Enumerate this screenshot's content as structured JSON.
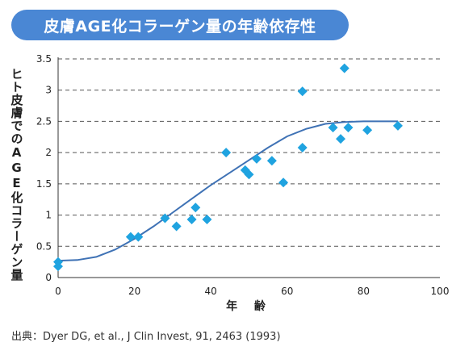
{
  "title": "皮膚AGE化コラーゲン量の年齢依存性",
  "source": "出典：Dyer DG, et al., J Clin Invest, 91, 2463 (1993)",
  "colors": {
    "title_bg": "#4a87d4",
    "marker": "#1fa3e0",
    "curve": "#3f72b5",
    "grid": "#555555"
  },
  "chart_data": {
    "type": "scatter",
    "xlabel": "年 齢",
    "ylabel": "ヒト皮膚でのAGE化コラーゲン量",
    "xlim": [
      0,
      100
    ],
    "ylim": [
      0,
      3.5
    ],
    "x_ticks": [
      "0",
      "20",
      "40",
      "60",
      "80",
      "100"
    ],
    "y_ticks": [
      "0",
      "0.5",
      "1",
      "1.5",
      "2",
      "2.5",
      "3",
      "3.5"
    ],
    "grid": "horizontal dashed",
    "points": [
      {
        "x": 0,
        "y": 0.25
      },
      {
        "x": 0,
        "y": 0.18
      },
      {
        "x": 19,
        "y": 0.65
      },
      {
        "x": 21,
        "y": 0.65
      },
      {
        "x": 28,
        "y": 0.95
      },
      {
        "x": 31,
        "y": 0.82
      },
      {
        "x": 35,
        "y": 0.93
      },
      {
        "x": 36,
        "y": 1.12
      },
      {
        "x": 39,
        "y": 0.93
      },
      {
        "x": 44,
        "y": 2.0
      },
      {
        "x": 49,
        "y": 1.72
      },
      {
        "x": 50,
        "y": 1.65
      },
      {
        "x": 52,
        "y": 1.9
      },
      {
        "x": 56,
        "y": 1.87
      },
      {
        "x": 59,
        "y": 1.52
      },
      {
        "x": 64,
        "y": 2.98
      },
      {
        "x": 64,
        "y": 2.08
      },
      {
        "x": 72,
        "y": 2.4
      },
      {
        "x": 74,
        "y": 2.22
      },
      {
        "x": 75,
        "y": 3.35
      },
      {
        "x": 76,
        "y": 2.4
      },
      {
        "x": 81,
        "y": 2.36
      },
      {
        "x": 89,
        "y": 2.43
      }
    ],
    "fit_curve": [
      {
        "x": 0,
        "y": 0.27
      },
      {
        "x": 5,
        "y": 0.28
      },
      {
        "x": 10,
        "y": 0.33
      },
      {
        "x": 15,
        "y": 0.45
      },
      {
        "x": 20,
        "y": 0.62
      },
      {
        "x": 25,
        "y": 0.82
      },
      {
        "x": 30,
        "y": 1.04
      },
      {
        "x": 35,
        "y": 1.26
      },
      {
        "x": 40,
        "y": 1.48
      },
      {
        "x": 45,
        "y": 1.68
      },
      {
        "x": 50,
        "y": 1.88
      },
      {
        "x": 55,
        "y": 2.08
      },
      {
        "x": 60,
        "y": 2.26
      },
      {
        "x": 65,
        "y": 2.38
      },
      {
        "x": 70,
        "y": 2.46
      },
      {
        "x": 75,
        "y": 2.49
      },
      {
        "x": 80,
        "y": 2.5
      },
      {
        "x": 85,
        "y": 2.5
      },
      {
        "x": 89,
        "y": 2.5
      }
    ]
  }
}
